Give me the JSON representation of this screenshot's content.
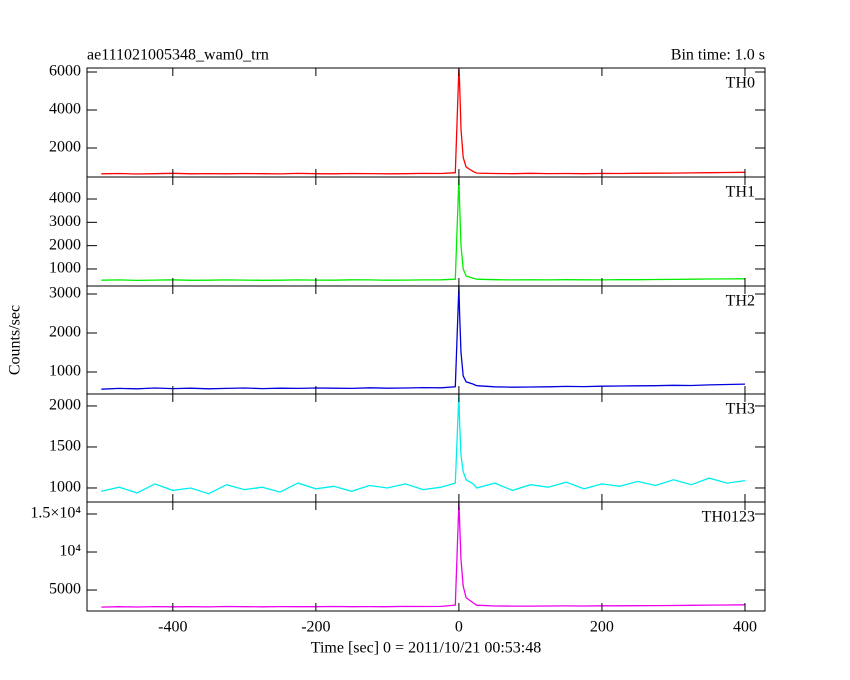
{
  "chart_data": [
    {
      "type": "line",
      "title": "ae111021005348_wam0_trn",
      "subtitle": "Bin time: 1.0 s",
      "x": [
        -500,
        -475,
        -450,
        -425,
        -400,
        -375,
        -350,
        -325,
        -300,
        -275,
        -250,
        -225,
        -200,
        -175,
        -150,
        -125,
        -100,
        -75,
        -50,
        -25,
        -5,
        0,
        1,
        3,
        6,
        10,
        20,
        25,
        50,
        75,
        100,
        125,
        150,
        175,
        200,
        225,
        250,
        275,
        300,
        325,
        350,
        375,
        400
      ],
      "series": [
        {
          "name": "TH0",
          "color": "#ff0000",
          "values": [
            640,
            660,
            630,
            650,
            670,
            640,
            655,
            645,
            660,
            650,
            635,
            665,
            650,
            640,
            660,
            655,
            645,
            650,
            665,
            660,
            700,
            6200,
            5400,
            3000,
            1500,
            1000,
            760,
            680,
            660,
            650,
            670,
            655,
            660,
            650,
            665,
            660,
            670,
            675,
            680,
            690,
            700,
            710,
            720
          ]
        }
      ],
      "xlim": [
        -520,
        428
      ],
      "xticks": [
        -400,
        -200,
        0,
        200,
        400
      ],
      "ylim": [
        474,
        6210
      ],
      "yticks": [
        2000,
        4000,
        6000
      ]
    },
    {
      "type": "line",
      "x": [
        -500,
        -475,
        -450,
        -425,
        -400,
        -375,
        -350,
        -325,
        -300,
        -275,
        -250,
        -225,
        -200,
        -175,
        -150,
        -125,
        -100,
        -75,
        -50,
        -25,
        -5,
        0,
        1,
        3,
        6,
        10,
        20,
        25,
        50,
        75,
        100,
        125,
        150,
        175,
        200,
        225,
        250,
        275,
        300,
        325,
        350,
        375,
        400
      ],
      "series": [
        {
          "name": "TH1",
          "color": "#00ee00",
          "values": [
            520,
            530,
            510,
            525,
            535,
            515,
            520,
            530,
            525,
            515,
            520,
            530,
            525,
            520,
            535,
            530,
            520,
            525,
            530,
            535,
            560,
            4900,
            3800,
            2000,
            1000,
            700,
            600,
            560,
            540,
            530,
            535,
            530,
            540,
            535,
            530,
            545,
            540,
            550,
            555,
            560,
            570,
            575,
            580
          ]
        }
      ],
      "xlim": [
        -520,
        428
      ],
      "xticks": [
        -400,
        -200,
        0,
        200,
        400
      ],
      "ylim": [
        270,
        4944
      ],
      "yticks": [
        1000,
        2000,
        3000,
        4000
      ]
    },
    {
      "type": "line",
      "ylabel": "Counts/sec",
      "x": [
        -500,
        -475,
        -450,
        -425,
        -400,
        -375,
        -350,
        -325,
        -300,
        -275,
        -250,
        -225,
        -200,
        -175,
        -150,
        -125,
        -100,
        -75,
        -50,
        -25,
        -5,
        0,
        1,
        3,
        6,
        10,
        20,
        25,
        50,
        75,
        100,
        125,
        150,
        175,
        200,
        225,
        250,
        275,
        300,
        325,
        350,
        375,
        400
      ],
      "series": [
        {
          "name": "TH2",
          "color": "#0000dd",
          "values": [
            560,
            580,
            570,
            590,
            575,
            585,
            570,
            580,
            590,
            575,
            585,
            580,
            590,
            585,
            580,
            595,
            585,
            590,
            600,
            595,
            620,
            3200,
            2500,
            1500,
            900,
            750,
            690,
            650,
            620,
            610,
            615,
            620,
            630,
            625,
            635,
            640,
            645,
            650,
            660,
            655,
            670,
            680,
            690
          ]
        }
      ],
      "xlim": [
        -520,
        428
      ],
      "xticks": [
        -400,
        -200,
        0,
        200,
        400
      ],
      "ylim": [
        436,
        3205
      ],
      "yticks": [
        1000,
        2000,
        3000
      ]
    },
    {
      "type": "line",
      "x": [
        -500,
        -475,
        -450,
        -425,
        -400,
        -375,
        -350,
        -325,
        -300,
        -275,
        -250,
        -225,
        -200,
        -175,
        -150,
        -125,
        -100,
        -75,
        -50,
        -25,
        -5,
        0,
        1,
        3,
        6,
        10,
        20,
        25,
        50,
        75,
        100,
        125,
        150,
        175,
        200,
        225,
        250,
        275,
        300,
        325,
        350,
        375,
        400
      ],
      "series": [
        {
          "name": "TH3",
          "color": "#00eeee",
          "values": [
            960,
            1010,
            940,
            1050,
            970,
            1000,
            930,
            1040,
            980,
            1010,
            950,
            1060,
            990,
            1020,
            960,
            1030,
            1000,
            1050,
            980,
            1010,
            1060,
            2140,
            1800,
            1400,
            1200,
            1100,
            1050,
            1000,
            1060,
            970,
            1040,
            1010,
            1070,
            990,
            1050,
            1020,
            1080,
            1030,
            1100,
            1040,
            1120,
            1060,
            1090
          ]
        }
      ],
      "xlim": [
        -520,
        428
      ],
      "xticks": [
        -400,
        -200,
        0,
        200,
        400
      ],
      "ylim": [
        829,
        2146
      ],
      "yticks": [
        1000,
        1500,
        2000
      ]
    },
    {
      "type": "line",
      "xlabel": "Time [sec] 0 = 2011/10/21 00:53:48",
      "x": [
        -500,
        -475,
        -450,
        -425,
        -400,
        -375,
        -350,
        -325,
        -300,
        -275,
        -250,
        -225,
        -200,
        -175,
        -150,
        -125,
        -100,
        -75,
        -50,
        -25,
        -5,
        0,
        1,
        3,
        6,
        10,
        20,
        25,
        50,
        75,
        100,
        125,
        150,
        175,
        200,
        225,
        250,
        275,
        300,
        325,
        350,
        375,
        400
      ],
      "series": [
        {
          "name": "TH0123",
          "color": "#ee00ee",
          "values": [
            2750,
            2800,
            2770,
            2820,
            2790,
            2810,
            2780,
            2830,
            2800,
            2790,
            2820,
            2810,
            2800,
            2830,
            2810,
            2820,
            2800,
            2840,
            2830,
            2850,
            3000,
            16500,
            14000,
            9000,
            5500,
            4000,
            3300,
            3000,
            2900,
            2880,
            2890,
            2900,
            2910,
            2900,
            2920,
            2930,
            2940,
            2950,
            2970,
            2990,
            3010,
            3030,
            3050
          ]
        }
      ],
      "xlim": [
        -520,
        428
      ],
      "xticks": [
        -400,
        -200,
        0,
        200,
        400
      ],
      "ylim": [
        2240,
        16580
      ],
      "yticks": [
        5000,
        {
          "value": 10000,
          "label": "10⁴"
        },
        {
          "value": 15000,
          "label": "1.5×10⁴"
        }
      ]
    }
  ]
}
